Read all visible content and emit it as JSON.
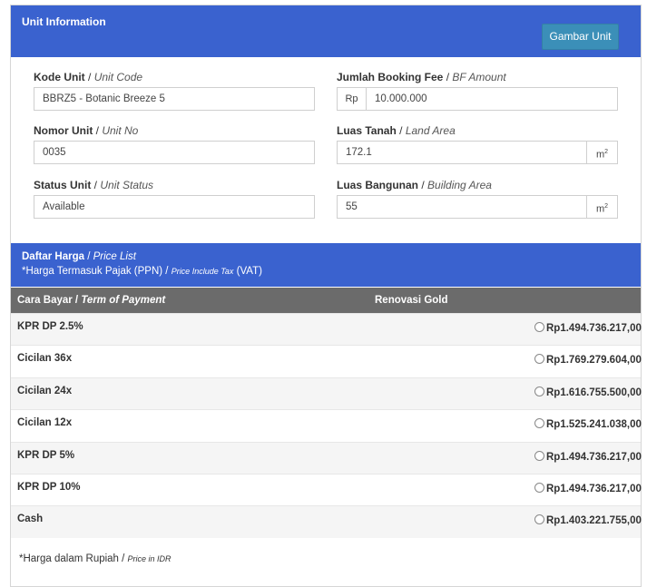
{
  "unit_info": {
    "title": "Unit Information",
    "gambar_button": "Gambar Unit",
    "kode_unit": {
      "label": "Kode Unit",
      "label_en": "Unit Code",
      "value": "BBRZ5 - Botanic Breeze 5"
    },
    "nomor_unit": {
      "label": "Nomor Unit",
      "label_en": "Unit No",
      "value": "0035"
    },
    "status_unit": {
      "label": "Status Unit",
      "label_en": "Unit Status",
      "value": "Available"
    },
    "booking_fee": {
      "label": "Jumlah Booking Fee",
      "label_en": "BF Amount",
      "prefix": "Rp",
      "value": "10.000.000"
    },
    "luas_tanah": {
      "label": "Luas Tanah",
      "label_en": "Land Area",
      "value": "172.1",
      "unit": "m",
      "unit_sup": "2"
    },
    "luas_bangunan": {
      "label": "Luas Bangunan",
      "label_en": "Building Area",
      "value": "55",
      "unit": "m",
      "unit_sup": "2"
    }
  },
  "price_list": {
    "title": "Daftar Harga",
    "title_en": "Price List",
    "tax_note": "*Harga Termasuk Pajak (PPN)",
    "tax_note_en": "Price Include Tax",
    "tax_note_suffix": "(VAT)",
    "col_payment": "Cara Bayar",
    "col_payment_en": "Term of Payment",
    "col_renovasi": "Renovasi Gold",
    "rows": [
      {
        "label": "KPR DP 2.5%",
        "price": "Rp1.494.736.217,00"
      },
      {
        "label": "Cicilan 36x",
        "price": "Rp1.769.279.604,00"
      },
      {
        "label": "Cicilan 24x",
        "price": "Rp1.616.755.500,00"
      },
      {
        "label": "Cicilan 12x",
        "price": "Rp1.525.241.038,00"
      },
      {
        "label": "KPR DP 5%",
        "price": "Rp1.494.736.217,00"
      },
      {
        "label": "KPR DP 10%",
        "price": "Rp1.494.736.217,00"
      },
      {
        "label": "Cash",
        "price": "Rp1.403.221.755,00"
      }
    ],
    "footnote": "*Harga dalam Rupiah",
    "footnote_en": "Price in IDR"
  }
}
